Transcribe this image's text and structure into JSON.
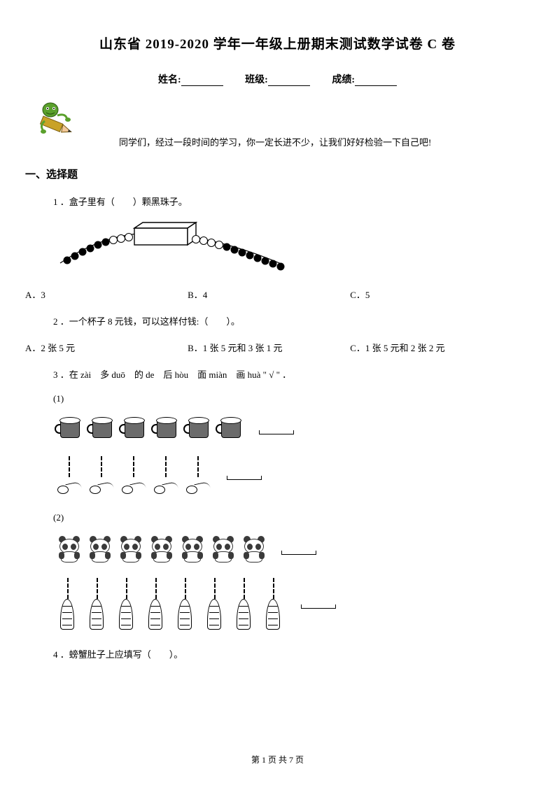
{
  "title": "山东省 2019-2020 学年一年级上册期末测试数学试卷 C 卷",
  "info": {
    "name_label": "姓名:",
    "class_label": "班级:",
    "score_label": "成绩:"
  },
  "intro": "同学们，经过一段时间的学习，你一定长进不少，让我们好好检验一下自己吧!",
  "section1": "一、选择题",
  "q1": {
    "text": "1 ．盒子里有（　　）颗黑珠子。",
    "optA": "A．3",
    "optB": "B．4",
    "optC": "C．5"
  },
  "q2": {
    "text": "2 ．一个杯子 8 元钱，可以这样付钱:（　　）。",
    "optA": "A．2 张 5 元",
    "optB": "B．1 张 5 元和 3 张 1 元",
    "optC": "C．1 张 5 元和 2 张 2 元"
  },
  "q3": {
    "text": "3 ．在 zài　多 duō　的 de　后 hòu　面 miàn　画 huà \" √ \" ．",
    "sub1": "(1)",
    "sub2": "(2)",
    "cups_count": 6,
    "spoons_count": 5,
    "pandas_count": 7,
    "shoots_count": 8
  },
  "q4": {
    "text": "4 ．螃蟹肚子上应填写（　　）。"
  },
  "footer": {
    "page_label": "第 1 页 共 7 页"
  },
  "colors": {
    "text": "#000000",
    "background": "#ffffff",
    "cup_body": "#6b6b6b",
    "panda_dark": "#3a3a3a",
    "pencil_green": "#5aa02c",
    "pencil_yellow": "#c9a227",
    "pencil_skin": "#f2c89a"
  }
}
